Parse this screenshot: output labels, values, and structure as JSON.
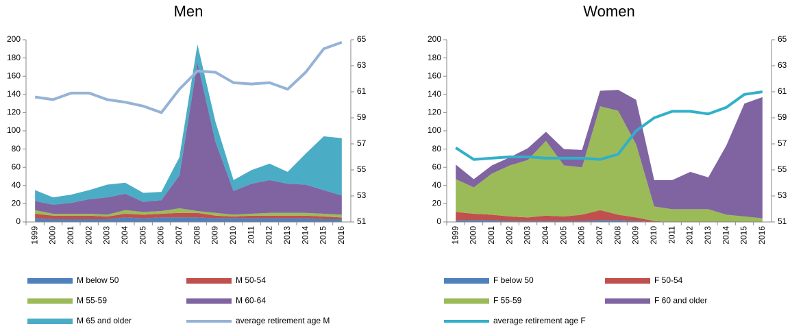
{
  "chart_data": [
    {
      "type": "area",
      "title": "Men",
      "categories": [
        "1999",
        "2000",
        "2001",
        "2002",
        "2003",
        "2004",
        "2005",
        "2006",
        "2007",
        "2008",
        "2009",
        "2010",
        "2011",
        "2012",
        "2013",
        "2014",
        "2015",
        "2016"
      ],
      "series": [
        {
          "name": "M below 50",
          "color": "#4f81bd",
          "values": [
            4,
            3,
            3,
            3,
            3,
            5,
            4,
            5,
            5,
            5,
            4,
            4,
            4,
            4,
            4,
            4,
            3,
            3
          ]
        },
        {
          "name": "M 50-54",
          "color": "#c0504d",
          "values": [
            5,
            4,
            4,
            4,
            3,
            4,
            4,
            4,
            5,
            5,
            3,
            2,
            3,
            3,
            3,
            3,
            3,
            2
          ]
        },
        {
          "name": "M 55-59",
          "color": "#9bbb59",
          "values": [
            4,
            2,
            2,
            2,
            2,
            4,
            3,
            3,
            5,
            2,
            3,
            2,
            2,
            3,
            3,
            3,
            3,
            3
          ]
        },
        {
          "name": "M 60-64",
          "color": "#8064a2",
          "values": [
            10,
            10,
            12,
            16,
            19,
            18,
            11,
            12,
            36,
            163,
            78,
            26,
            33,
            36,
            32,
            31,
            26,
            21
          ]
        },
        {
          "name": "M 65 and older",
          "color": "#4bacc6",
          "values": [
            12,
            8,
            9,
            10,
            14,
            12,
            10,
            9,
            20,
            20,
            22,
            12,
            15,
            18,
            13,
            34,
            59,
            63
          ]
        },
        {
          "name": "average retirement age M",
          "color": "#95b3d7",
          "axis": "y2",
          "values": [
            60.6,
            60.4,
            60.9,
            60.9,
            60.4,
            60.2,
            59.9,
            59.4,
            61.2,
            62.6,
            62.5,
            61.7,
            61.6,
            61.7,
            61.2,
            62.5,
            64.3,
            64.8
          ]
        }
      ],
      "ylim": [
        0,
        200
      ],
      "yticks": [
        0,
        20,
        40,
        60,
        80,
        100,
        120,
        140,
        160,
        180,
        200
      ],
      "y2lim": [
        51,
        65
      ],
      "y2ticks": [
        51,
        53,
        55,
        57,
        59,
        61,
        63,
        65
      ]
    },
    {
      "type": "area",
      "title": "Women",
      "categories": [
        "1999",
        "2000",
        "2001",
        "2002",
        "2003",
        "2004",
        "2005",
        "2006",
        "2007",
        "2008",
        "2009",
        "2010",
        "2011",
        "2012",
        "2013",
        "2014",
        "2015",
        "2016"
      ],
      "series": [
        {
          "name": "F below 50",
          "color": "#4f81bd",
          "values": [
            2,
            2,
            2,
            1,
            1,
            1,
            1,
            1,
            2,
            2,
            1,
            0,
            0,
            0,
            0,
            0,
            0,
            0
          ]
        },
        {
          "name": "F 50-54",
          "color": "#c0504d",
          "values": [
            9,
            7,
            6,
            5,
            4,
            6,
            5,
            7,
            11,
            6,
            4,
            1,
            0,
            0,
            0,
            0,
            0,
            0
          ]
        },
        {
          "name": "F 55-59",
          "color": "#9bbb59",
          "values": [
            36,
            29,
            45,
            56,
            63,
            82,
            56,
            52,
            114,
            114,
            80,
            16,
            14,
            14,
            14,
            8,
            6,
            4
          ]
        },
        {
          "name": "F 60 and older",
          "color": "#8064a2",
          "values": [
            16,
            9,
            9,
            9,
            13,
            10,
            18,
            19,
            17,
            23,
            49,
            29,
            32,
            41,
            35,
            76,
            124,
            133
          ]
        },
        {
          "name": "average retirement age F",
          "color": "#31b0c9",
          "axis": "y2",
          "values": [
            56.7,
            55.8,
            55.9,
            56,
            56,
            55.9,
            55.9,
            55.9,
            55.8,
            56.2,
            58,
            59,
            59.5,
            59.5,
            59.3,
            59.8,
            60.8,
            61
          ]
        }
      ],
      "ylim": [
        0,
        200
      ],
      "yticks": [
        0,
        20,
        40,
        60,
        80,
        100,
        120,
        140,
        160,
        180,
        200
      ],
      "y2lim": [
        51,
        65
      ],
      "y2ticks": [
        51,
        53,
        55,
        57,
        59,
        61,
        63,
        65
      ]
    }
  ]
}
